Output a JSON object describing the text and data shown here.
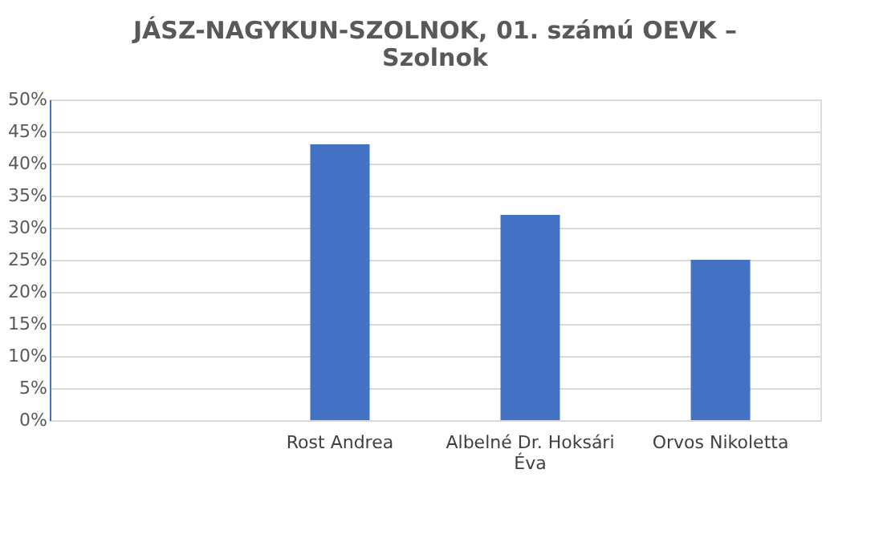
{
  "chart_data": {
    "type": "bar",
    "title": "JÁSZ-NAGYKUN-SZOLNOK, 01. számú OEVK – Szolnok",
    "categories": [
      null,
      "Rost Andrea",
      "Albelné Dr. Hoksári Éva",
      "Orvos Nikoletta"
    ],
    "values": [
      null,
      43,
      32,
      25
    ],
    "color": "#4472c4",
    "ylim": [
      0,
      50
    ],
    "yticks": [
      {
        "value": 0,
        "label": "0%"
      },
      {
        "value": 5,
        "label": "5%"
      },
      {
        "value": 10,
        "label": "10%"
      },
      {
        "value": 15,
        "label": "15%"
      },
      {
        "value": 20,
        "label": "20%"
      },
      {
        "value": 25,
        "label": "25%"
      },
      {
        "value": 30,
        "label": "30%"
      },
      {
        "value": 35,
        "label": "35%"
      },
      {
        "value": 40,
        "label": "40%"
      },
      {
        "value": 45,
        "label": "45%"
      },
      {
        "value": 50,
        "label": "50%"
      }
    ],
    "grid": "y"
  }
}
